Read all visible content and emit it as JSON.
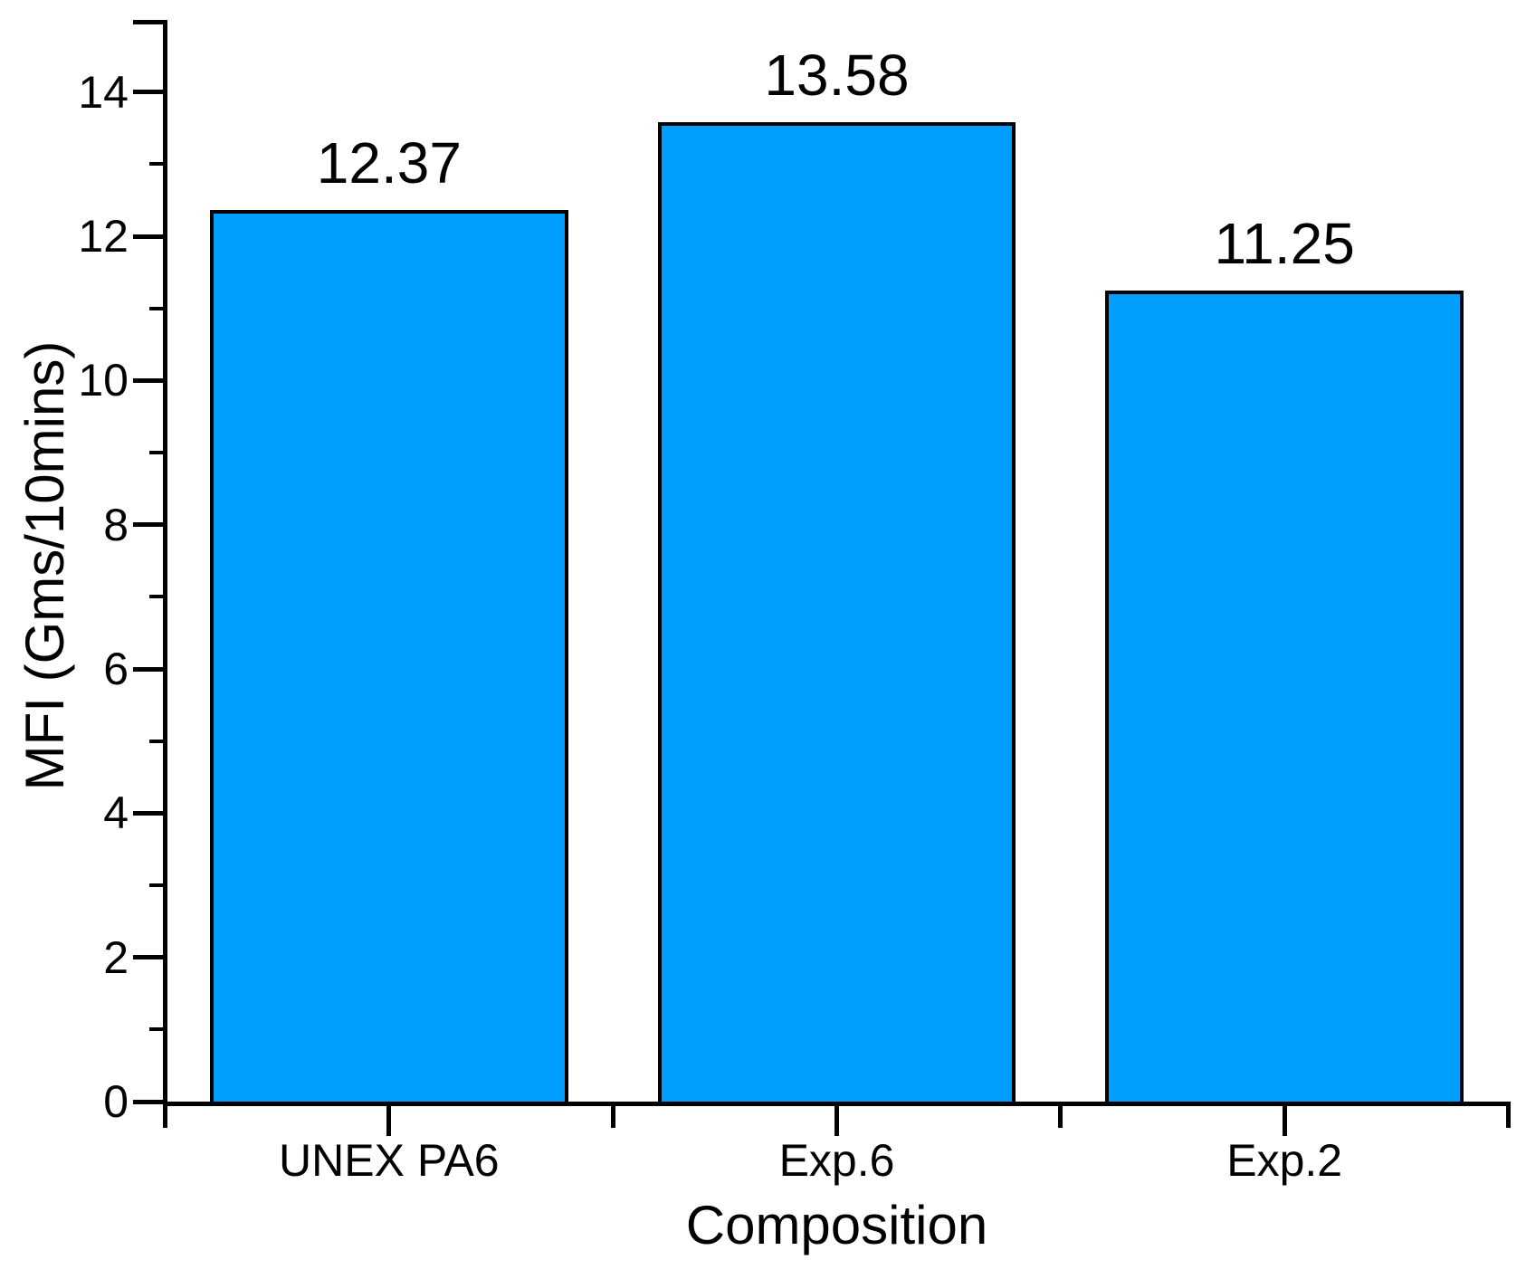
{
  "chart_data": {
    "type": "bar",
    "title": "",
    "xlabel": "Composition",
    "ylabel": "MFI (Gms/10mins)",
    "categories": [
      "UNEX PA6",
      "Exp.6",
      "Exp.2"
    ],
    "values": [
      12.37,
      13.58,
      11.25
    ],
    "bar_value_labels": [
      "12.37",
      "13.58",
      "11.25"
    ],
    "ylim": [
      0,
      15
    ],
    "ytick_major_step": 2,
    "ytick_minor_step": 1,
    "ytick_labels": [
      "0",
      "2",
      "4",
      "6",
      "8",
      "10",
      "12",
      "14"
    ],
    "grid": false,
    "legend_position": "none",
    "bar_width_fraction": 0.8,
    "colors": {
      "bar_fill": "#009FFF",
      "bar_border": "#000000",
      "axis": "#000000",
      "text": "#000000",
      "background": "#FFFFFF"
    }
  }
}
